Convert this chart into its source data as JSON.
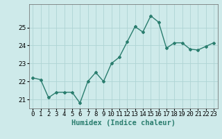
{
  "x": [
    0,
    1,
    2,
    3,
    4,
    5,
    6,
    7,
    8,
    9,
    10,
    11,
    12,
    13,
    14,
    15,
    16,
    17,
    18,
    19,
    20,
    21,
    22,
    23
  ],
  "y": [
    22.2,
    22.1,
    21.1,
    21.4,
    21.4,
    21.4,
    20.8,
    22.0,
    22.5,
    22.0,
    23.0,
    23.35,
    24.2,
    25.05,
    24.75,
    25.65,
    25.3,
    23.85,
    24.15,
    24.15,
    23.8,
    23.75,
    23.95,
    24.15
  ],
  "line_color": "#2a7d6e",
  "marker": "D",
  "marker_size": 2.0,
  "linewidth": 1.0,
  "xlabel": "Humidex (Indice chaleur)",
  "xlabel_fontsize": 7.5,
  "xlabel_fontweight": "bold",
  "ylim": [
    20.5,
    26.3
  ],
  "xlim": [
    -0.5,
    23.5
  ],
  "yticks": [
    21,
    22,
    23,
    24,
    25
  ],
  "xtick_labels": [
    "0",
    "1",
    "2",
    "3",
    "4",
    "5",
    "6",
    "7",
    "8",
    "9",
    "10",
    "11",
    "12",
    "13",
    "14",
    "15",
    "16",
    "17",
    "18",
    "19",
    "20",
    "21",
    "22",
    "23"
  ],
  "bg_color": "#ceeaea",
  "grid_color": "#aed4d4",
  "tick_fontsize": 6.5,
  "xlabel_color": "#2a7d6e"
}
